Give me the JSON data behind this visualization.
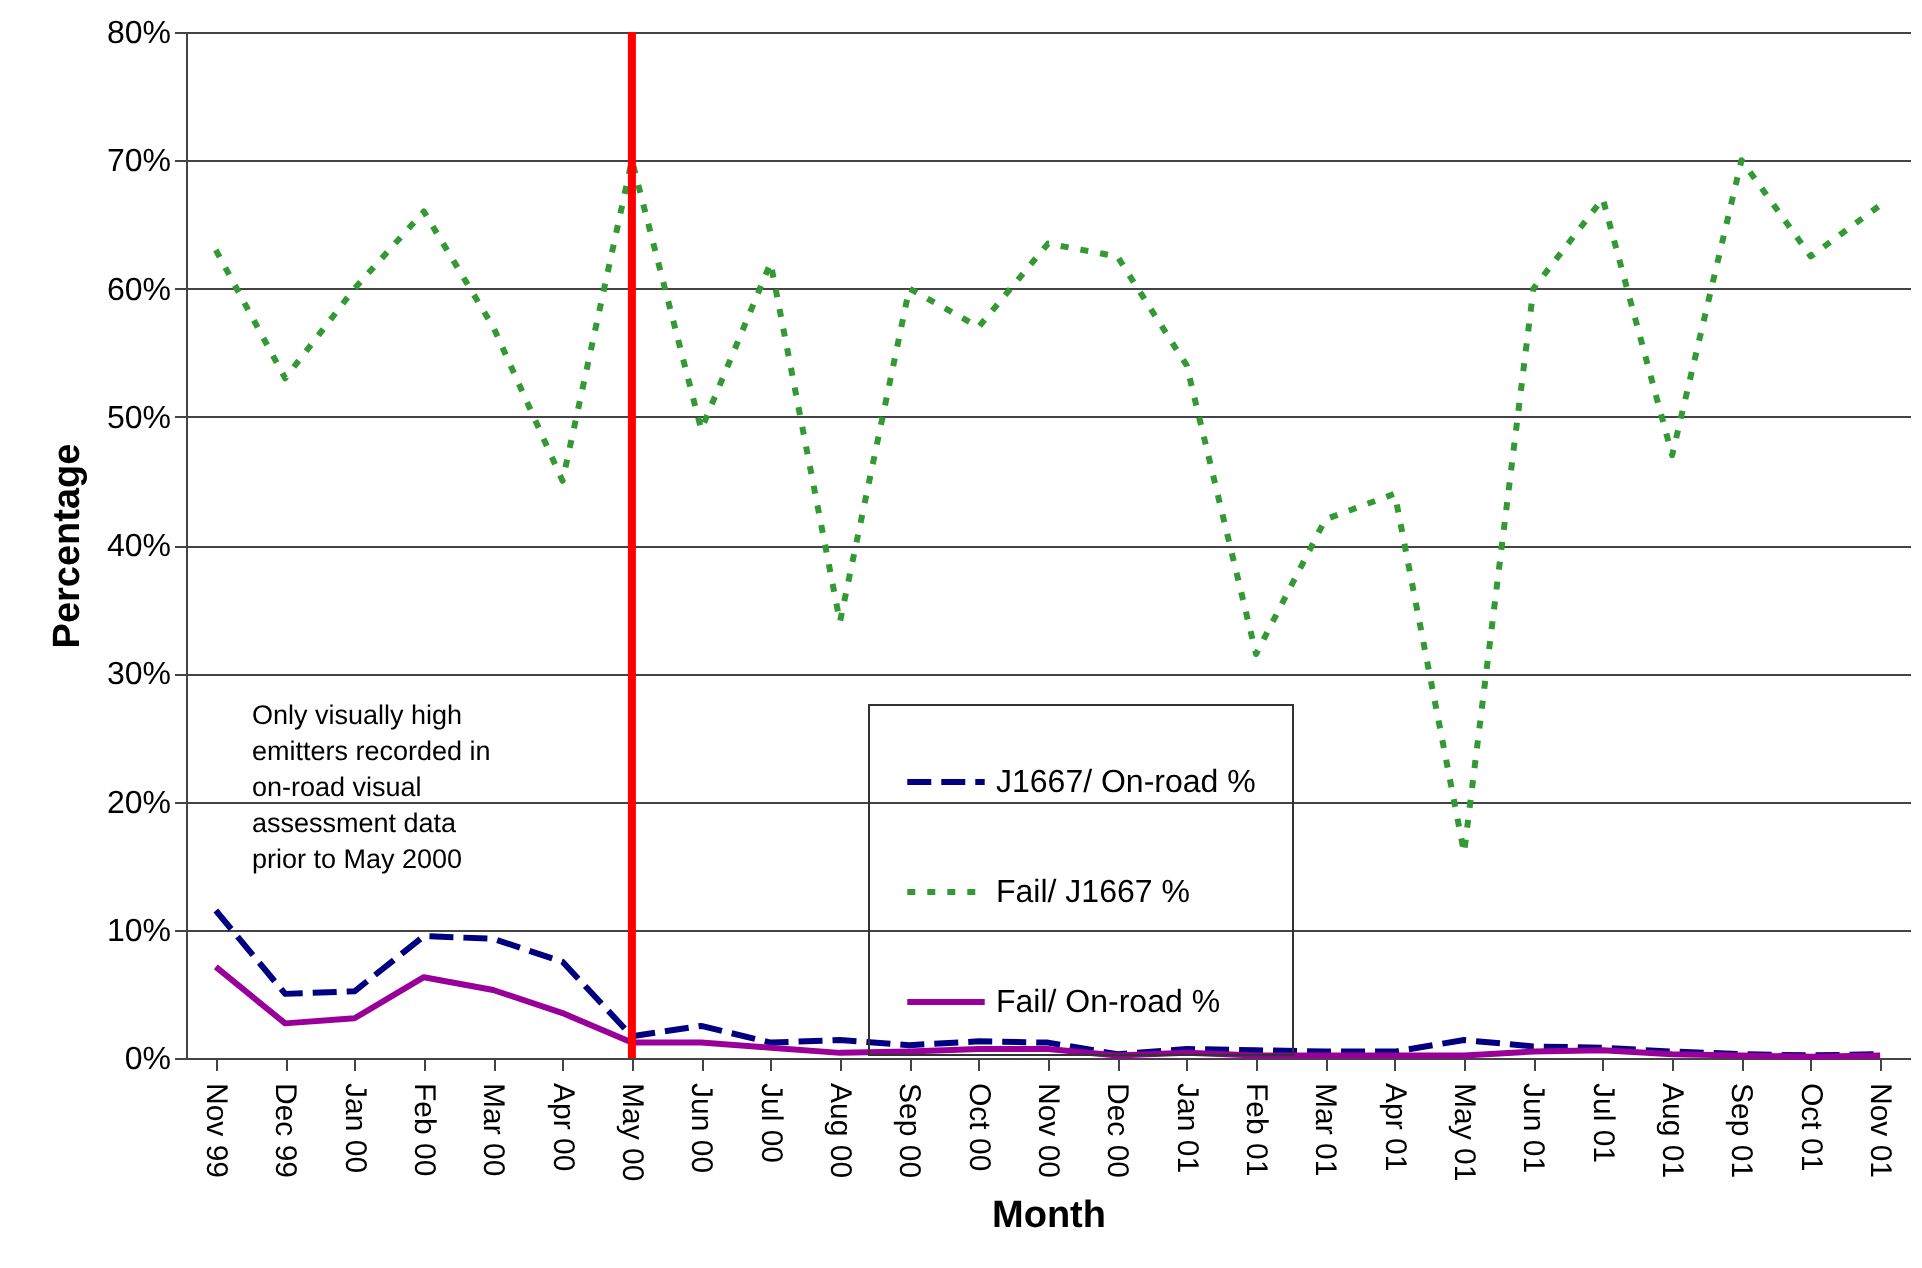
{
  "chart_data": {
    "type": "line",
    "xlabel": "Month",
    "ylabel": "Percentage",
    "categories": [
      "Nov 99",
      "Dec 99",
      "Jan 00",
      "Feb 00",
      "Mar 00",
      "Apr 00",
      "May 00",
      "Jun 00",
      "Jul 00",
      "Aug 00",
      "Sep 00",
      "Oct 00",
      "Nov 00",
      "Dec 00",
      "Jan 01",
      "Feb 01",
      "Mar 01",
      "Apr 01",
      "May 01",
      "Jun 01",
      "Jul 01",
      "Aug 01",
      "Sep 01",
      "Oct 01",
      "Nov 01"
    ],
    "series": [
      {
        "name": "J1667/ On-road %",
        "color": "#000080",
        "line_style": "dashed",
        "values": [
          11.5,
          5,
          5.2,
          9.5,
          9.3,
          7.5,
          1.7,
          2.5,
          1.2,
          1.4,
          1,
          1.3,
          1.2,
          0.3,
          0.7,
          0.6,
          0.5,
          0.5,
          1.4,
          0.9,
          0.8,
          0.5,
          0.3,
          0.2,
          0.3
        ]
      },
      {
        "name": "Fail/ J1667 %",
        "color": "#339933",
        "line_style": "dotted",
        "values": [
          63,
          53,
          60,
          66,
          57,
          45,
          70,
          49,
          62,
          34,
          60,
          57,
          63.5,
          62.5,
          54,
          31.5,
          42,
          44,
          16,
          60,
          67,
          47,
          70,
          62.5,
          66.5
        ]
      },
      {
        "name": "Fail/ On-road %",
        "color": "#990099",
        "line_style": "solid",
        "values": [
          7.1,
          2.7,
          3.1,
          6.3,
          5.3,
          3.5,
          1.2,
          1.2,
          0.8,
          0.4,
          0.5,
          0.7,
          0.7,
          0.2,
          0.4,
          0.2,
          0.2,
          0.2,
          0.2,
          0.5,
          0.6,
          0.3,
          0.2,
          0.1,
          0.2
        ]
      }
    ],
    "ylim": [
      0,
      80
    ],
    "yticks": [
      {
        "value": 0,
        "label": "0%"
      },
      {
        "value": 10,
        "label": "10%"
      },
      {
        "value": 20,
        "label": "20%"
      },
      {
        "value": 30,
        "label": "30%"
      },
      {
        "value": 40,
        "label": "40%"
      },
      {
        "value": 50,
        "label": "50%"
      },
      {
        "value": 60,
        "label": "60%"
      },
      {
        "value": 70,
        "label": "70%"
      },
      {
        "value": 80,
        "label": "80%"
      }
    ],
    "grid": "y",
    "legend": "bottom",
    "ref_lines": [
      {
        "axis": "x",
        "value": "May 00",
        "color": "#ff0000"
      }
    ],
    "annotations": [
      "Only visually high\nemitters recorded in\non-road visual\nassessment data\nprior to May 2000"
    ]
  }
}
